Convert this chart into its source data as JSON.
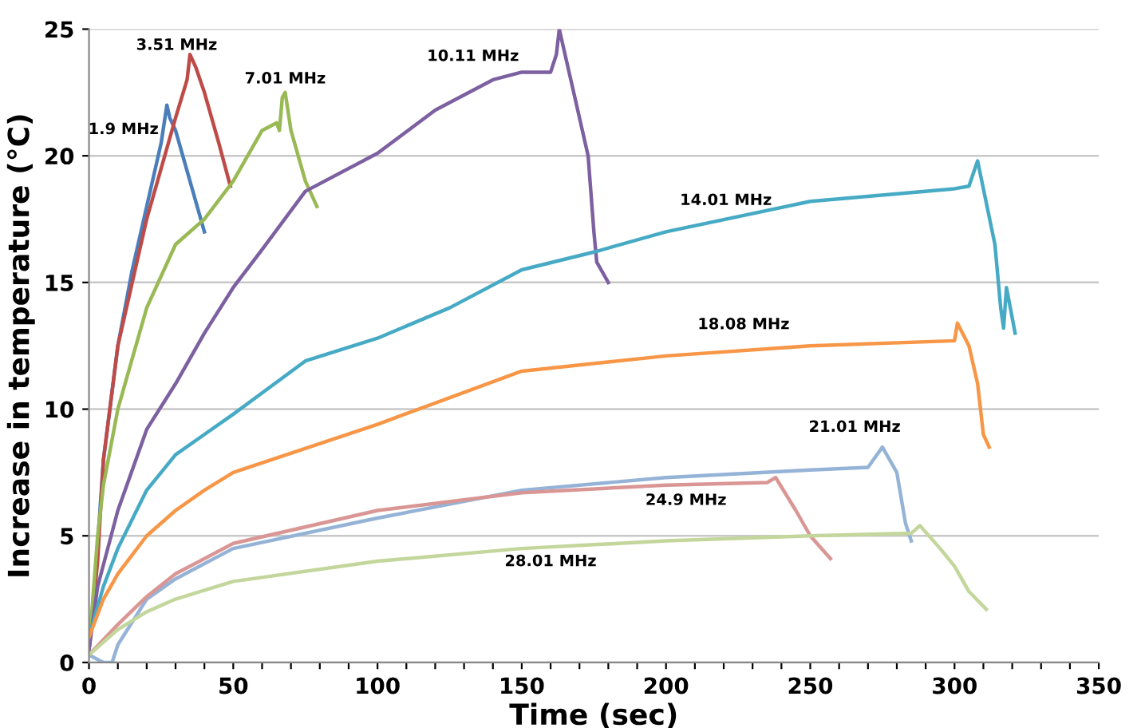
{
  "chart_data": {
    "type": "line",
    "xlabel": "Time (sec)",
    "ylabel": "Increase in temperature (°C)",
    "xlim": [
      0,
      350
    ],
    "ylim": [
      0,
      25
    ],
    "xticks": [
      0,
      {
        "value": 10,
        "label": null
      },
      {
        "value": 20,
        "label": null
      },
      {
        "value": 30,
        "label": null
      },
      {
        "value": 40,
        "label": null
      },
      50,
      {
        "value": 60,
        "label": null
      },
      {
        "value": 70,
        "label": null
      },
      {
        "value": 80,
        "label": null
      },
      {
        "value": 90,
        "label": null
      },
      100,
      {
        "value": 110,
        "label": null
      },
      {
        "value": 120,
        "label": null
      },
      {
        "value": 130,
        "label": null
      },
      {
        "value": 140,
        "label": null
      },
      150,
      {
        "value": 160,
        "label": null
      },
      {
        "value": 170,
        "label": null
      },
      {
        "value": 180,
        "label": null
      },
      {
        "value": 190,
        "label": null
      },
      200,
      {
        "value": 210,
        "label": null
      },
      {
        "value": 220,
        "label": null
      },
      {
        "value": 230,
        "label": null
      },
      {
        "value": 240,
        "label": null
      },
      250,
      {
        "value": 260,
        "label": null
      },
      {
        "value": 270,
        "label": null
      },
      {
        "value": 280,
        "label": null
      },
      {
        "value": 290,
        "label": null
      },
      300,
      {
        "value": 310,
        "label": null
      },
      {
        "value": 320,
        "label": null
      },
      {
        "value": 330,
        "label": null
      },
      {
        "value": 340,
        "label": null
      },
      350
    ],
    "yticks": [
      0,
      5,
      10,
      15,
      20,
      25
    ],
    "grid": "y",
    "legend": false,
    "marker": "none",
    "line_style": "solid",
    "series": [
      {
        "color": "#4a7ebb",
        "x": [
          0,
          2,
          5,
          10,
          15,
          20,
          25,
          27,
          28,
          30,
          35,
          40
        ],
        "values": [
          0.5,
          3,
          8,
          12.5,
          15.5,
          18,
          20.5,
          22,
          21.5,
          21,
          19,
          17
        ]
      },
      {
        "color": "#be4b48",
        "x": [
          0,
          3,
          5,
          10,
          15,
          20,
          25,
          30,
          34,
          35,
          37,
          40,
          45,
          49
        ],
        "values": [
          0.5,
          4,
          8,
          12.5,
          15,
          17.5,
          19.5,
          21.5,
          23,
          24,
          23.5,
          22.5,
          20.5,
          18.8
        ]
      },
      {
        "color": "#98b954",
        "x": [
          0,
          3,
          5,
          10,
          20,
          30,
          40,
          50,
          60,
          65,
          66,
          67,
          68,
          70,
          75,
          79
        ],
        "values": [
          0.5,
          5,
          7,
          10,
          14,
          16.5,
          17.5,
          19,
          21,
          21.3,
          21,
          22.3,
          22.5,
          21,
          19,
          18
        ]
      },
      {
        "color": "#7d60a0",
        "x": [
          0,
          3,
          10,
          20,
          30,
          40,
          50,
          60,
          75,
          100,
          120,
          140,
          150,
          160,
          162,
          163,
          165,
          168,
          173,
          175,
          176,
          180
        ],
        "values": [
          0.5,
          3,
          6,
          9.2,
          11,
          13,
          14.8,
          16.3,
          18.6,
          20.1,
          21.8,
          23,
          23.3,
          23.3,
          24,
          25,
          24,
          22.5,
          20,
          17,
          15.8,
          15
        ]
      },
      {
        "color": "#46aac5",
        "x": [
          0,
          5,
          10,
          20,
          30,
          40,
          50,
          75,
          100,
          125,
          150,
          175,
          200,
          250,
          300,
          305,
          308,
          310,
          314,
          316,
          317,
          318,
          321
        ],
        "values": [
          1,
          3,
          4.5,
          6.8,
          8.2,
          9,
          9.8,
          11.9,
          12.8,
          14,
          15.5,
          16.2,
          17,
          18.2,
          18.7,
          18.8,
          19.8,
          18.7,
          16.5,
          14,
          13.2,
          14.8,
          13
        ]
      },
      {
        "color": "#f79646",
        "x": [
          0,
          5,
          10,
          20,
          30,
          40,
          50,
          100,
          150,
          200,
          250,
          300,
          301,
          305,
          308,
          310,
          312
        ],
        "values": [
          1,
          2.5,
          3.5,
          5,
          6,
          6.8,
          7.5,
          9.4,
          11.5,
          12.1,
          12.5,
          12.7,
          13.4,
          12.5,
          11,
          9,
          8.5
        ]
      },
      {
        "color": "#95b3d7",
        "x": [
          0,
          5,
          8,
          10,
          20,
          30,
          50,
          100,
          150,
          200,
          250,
          270,
          275,
          280,
          283,
          285
        ],
        "values": [
          0.3,
          0,
          0,
          0.7,
          2.5,
          3.3,
          4.5,
          5.7,
          6.8,
          7.3,
          7.6,
          7.7,
          8.5,
          7.5,
          5.5,
          4.8
        ]
      },
      {
        "color": "#d99694",
        "x": [
          0,
          10,
          20,
          30,
          50,
          100,
          150,
          200,
          235,
          238,
          245,
          250,
          257
        ],
        "values": [
          0.3,
          1.5,
          2.6,
          3.5,
          4.7,
          6,
          6.7,
          7,
          7.1,
          7.3,
          6,
          5,
          4.1
        ]
      },
      {
        "color": "#c3d69b",
        "x": [
          0,
          10,
          20,
          30,
          50,
          100,
          150,
          200,
          250,
          285,
          288,
          295,
          300,
          305,
          311
        ],
        "values": [
          0.3,
          1.3,
          2,
          2.5,
          3.2,
          4,
          4.5,
          4.8,
          5,
          5.1,
          5.4,
          4.5,
          3.8,
          2.8,
          2.1
        ]
      }
    ],
    "annotations": [
      {
        "text": "1.9 MHz",
        "x": 25,
        "y": 20.5
      },
      {
        "text": "3.51 MHz",
        "x": 35,
        "y": 24
      },
      {
        "text": "7.01 MHz",
        "x": 68,
        "y": 22.5
      },
      {
        "text": "10.11 MHz",
        "x": 150,
        "y": 23.3
      },
      {
        "text": "14.01 MHz",
        "x": 200,
        "y": 17
      },
      {
        "text": "18.08 MHz",
        "x": 200,
        "y": 12.1
      },
      {
        "text": "21.01 MHz",
        "x": 270,
        "y": 7.7
      },
      {
        "text": "24.9 MHz",
        "x": 200,
        "y": 7
      },
      {
        "text": "28.01 MHz",
        "x": 150,
        "y": 4.5
      }
    ]
  }
}
